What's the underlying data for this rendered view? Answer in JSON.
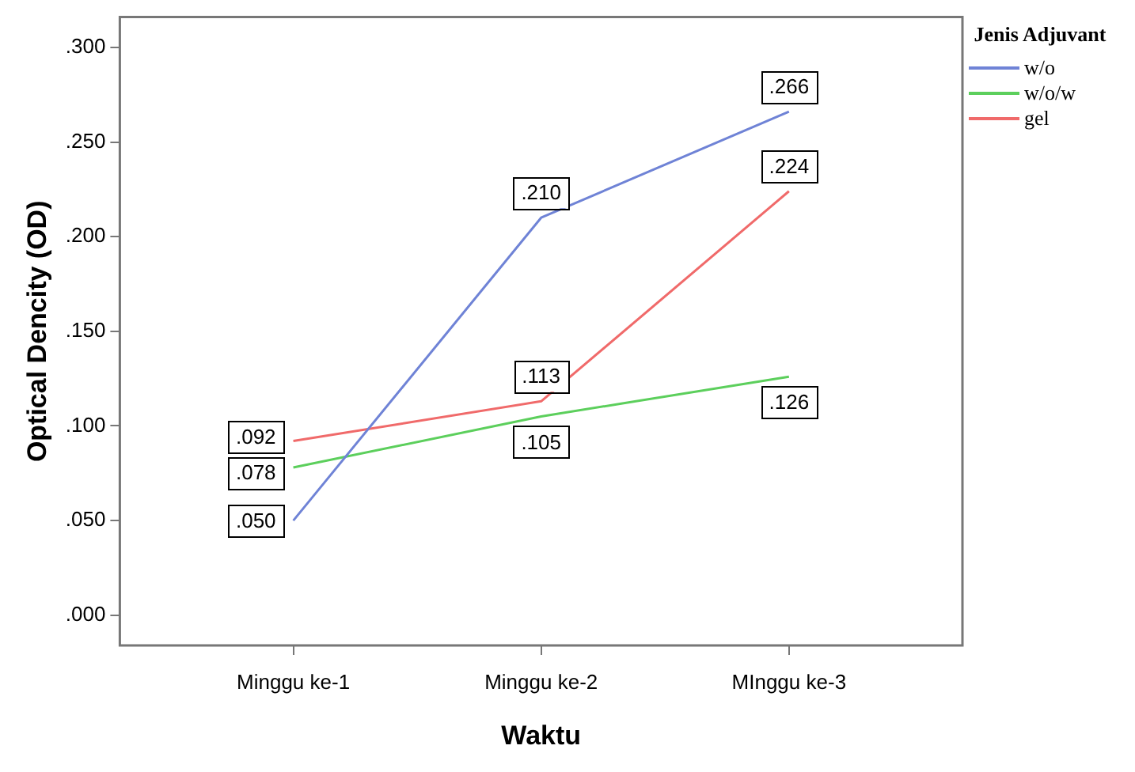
{
  "chart_data": {
    "type": "line",
    "xlabel": "Waktu",
    "ylabel": "Optical Dencity (OD)",
    "legend_title": "Jenis Adjuvant",
    "categories": [
      "Minggu ke-1",
      "Minggu ke-2",
      "MInggu ke-3"
    ],
    "series": [
      {
        "name": "w/o",
        "color": "#6f83d6",
        "values": [
          0.05,
          0.21,
          0.266
        ],
        "value_labels": [
          ".050",
          ".210",
          ".266"
        ]
      },
      {
        "name": "w/o/w",
        "color": "#5ccf5c",
        "values": [
          0.078,
          0.105,
          0.126
        ],
        "value_labels": [
          ".078",
          ".105",
          ".126"
        ]
      },
      {
        "name": "gel",
        "color": "#f06a6a",
        "values": [
          0.092,
          0.113,
          0.224
        ],
        "value_labels": [
          ".092",
          ".113",
          ".224"
        ]
      }
    ],
    "ylim": [
      -0.016,
      0.316
    ],
    "yticks": [
      {
        "value": 0,
        "label": ".000"
      },
      {
        "value": 0.05,
        "label": ".050"
      },
      {
        "value": 0.1,
        "label": ".100"
      },
      {
        "value": 0.15,
        "label": ".150"
      },
      {
        "value": 0.2,
        "label": ".200"
      },
      {
        "value": 0.25,
        "label": ".250"
      },
      {
        "value": 0.3,
        "label": ".300"
      }
    ],
    "grid": false,
    "legend": "top right",
    "line_style": "solid"
  }
}
